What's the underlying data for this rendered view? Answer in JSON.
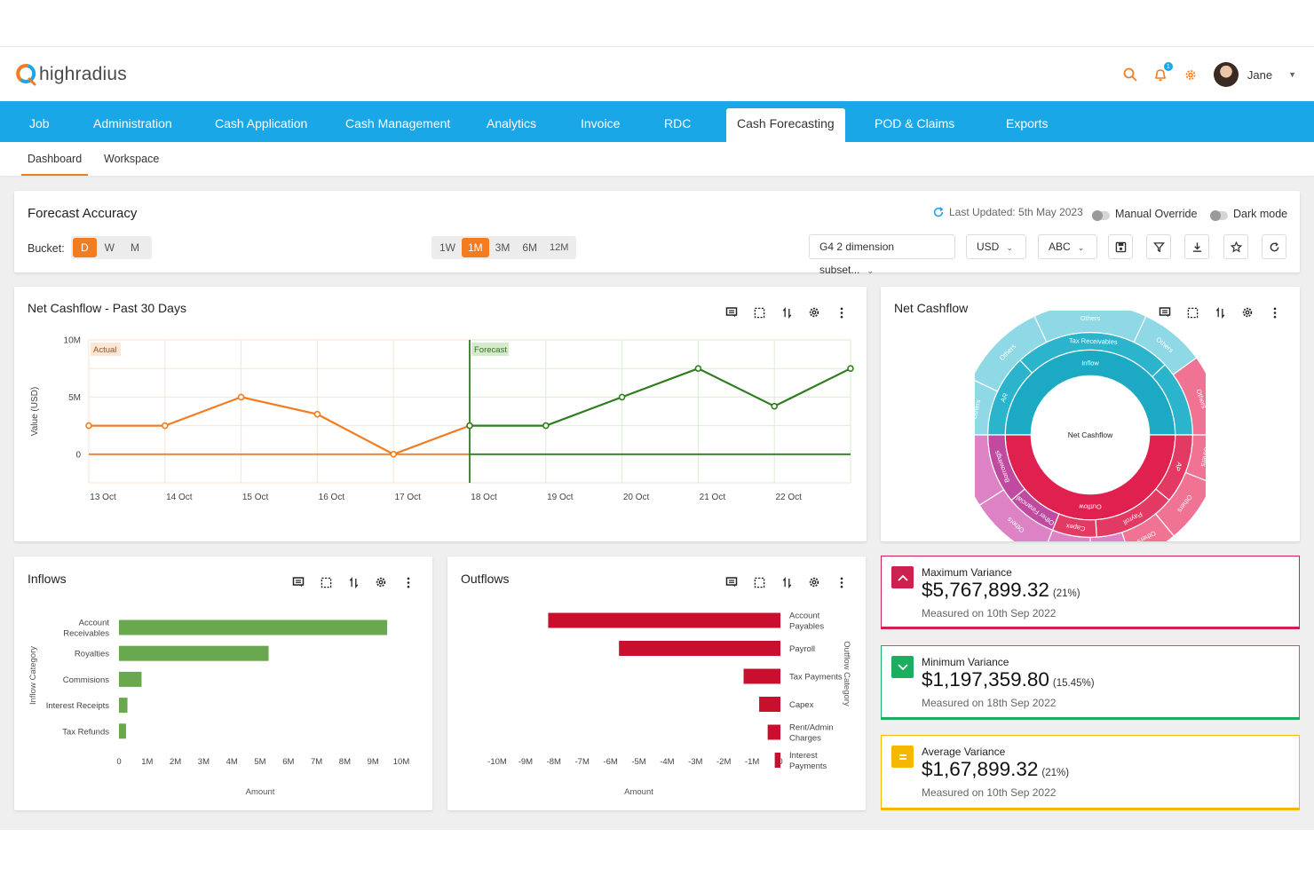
{
  "header": {
    "logo_text": "highradius",
    "user_name": "Jane",
    "notification_count": "1",
    "accent": "#f47c20"
  },
  "nav": {
    "items": [
      "Job",
      "Administration",
      "Cash Application",
      "Cash Management",
      "Analytics",
      "Invoice",
      "RDC",
      "Cash Forecasting",
      "POD & Claims",
      "Exports"
    ],
    "active": "Cash Forecasting",
    "color": "#1aa7e8"
  },
  "subnav": {
    "items": [
      "Dashboard",
      "Workspace"
    ],
    "active": "Dashboard"
  },
  "forecast": {
    "title": "Forecast Accuracy",
    "last_updated": "Last Updated: 5th May 2023",
    "manual_override": "Manual Override",
    "dark_mode": "Dark mode",
    "bucket_label": "Bucket:",
    "buckets": [
      "D",
      "W",
      "M"
    ],
    "bucket_active": "D",
    "ranges": [
      "1W",
      "1M",
      "3M",
      "6M",
      "12M"
    ],
    "range_active": "1M",
    "subset": "G4 2 dimension subset...",
    "currency": "USD",
    "company": "ABC"
  },
  "net_cashflow_line": {
    "title": "Net Cashflow - Past 30 Days",
    "actual_label": "Actual",
    "forecast_label": "Forecast"
  },
  "net_cashflow_sunburst": {
    "title": "Net Cashflow",
    "center": "Net Cashflow",
    "inflow_color": "#1ba9c4",
    "outflow_color": "#e0204f"
  },
  "inflows": {
    "title": "Inflows"
  },
  "outflows": {
    "title": "Outflows"
  },
  "variances": [
    {
      "title": "Maximum Variance",
      "value": "$5,767,899.32",
      "pct": "(21%)",
      "measured": "Measured on 10th Sep 2022",
      "color": "#cc2250"
    },
    {
      "title": "Minimum Variance",
      "value": "$1,197,359.80",
      "pct": "(15.45%)",
      "measured": "Measured on 18th Sep 2022",
      "color": "#1aae5e"
    },
    {
      "title": "Average Variance",
      "value": "$1,67,899.32",
      "pct": "(21%)",
      "measured": "Measured on 10th Sep 2022",
      "color": "#f5b800"
    }
  ],
  "chart_data": [
    {
      "type": "line",
      "title": "Net Cashflow - Past 30 Days",
      "ylabel": "Value (USD)",
      "xlabel": "",
      "x": [
        "13 Oct",
        "14 Oct",
        "15 Oct",
        "16 Oct",
        "17 Oct",
        "18 Oct",
        "19 Oct",
        "20 Oct",
        "21 Oct",
        "22 Oct",
        ""
      ],
      "yticks": [
        "10M",
        "5M",
        "0"
      ],
      "ylim": [
        -2500000,
        10000000
      ],
      "series": [
        {
          "name": "Actual",
          "color": "#f47c20",
          "values": [
            2500000,
            2500000,
            5000000,
            3500000,
            0,
            2500000,
            null,
            null,
            null,
            null,
            null
          ]
        },
        {
          "name": "Forecast",
          "color": "#2e7d1e",
          "values": [
            null,
            null,
            null,
            null,
            null,
            2500000,
            2500000,
            5000000,
            7500000,
            4200000,
            7500000
          ]
        }
      ],
      "grid": true
    },
    {
      "type": "pie",
      "title": "Net Cashflow",
      "center_label": "Net Cashflow",
      "rings": [
        {
          "level": 1,
          "slices": [
            {
              "label": "Inflow",
              "value": 50
            },
            {
              "label": "Outflow",
              "value": 50
            }
          ]
        },
        {
          "level": 2,
          "slices": [
            {
              "label": "AR",
              "value": 13
            },
            {
              "label": "Tax Receivables",
              "value": 25
            },
            {
              "label": "",
              "value": 12
            },
            {
              "label": "AP",
              "value": 11
            },
            {
              "label": "Payroll",
              "value": 13
            },
            {
              "label": "Capex",
              "value": 7
            },
            {
              "label": "Other Financial",
              "value": 8
            },
            {
              "label": "Borrowings",
              "value": 11
            }
          ]
        },
        {
          "level": 3,
          "slices": [
            {
              "label": "Others",
              "value": 7
            },
            {
              "label": "Others",
              "value": 11
            },
            {
              "label": "Others",
              "value": 14
            },
            {
              "label": "Others",
              "value": 8
            },
            {
              "label": "Others",
              "value": 10
            },
            {
              "label": "Others",
              "value": 6
            },
            {
              "label": "Others",
              "value": 8
            },
            {
              "label": "Others",
              "value": 6
            },
            {
              "label": "Other...",
              "value": 5
            },
            {
              "label": "Others",
              "value": 6
            },
            {
              "label": "Others",
              "value": 10
            },
            {
              "label": "",
              "value": 9
            }
          ]
        }
      ]
    },
    {
      "type": "bar",
      "title": "Inflows",
      "orientation": "horizontal",
      "categories": [
        "Account Receivables",
        "Royalties",
        "Commisions",
        "Interest Receipts",
        "Tax Refunds"
      ],
      "values": [
        9500000,
        5300000,
        800000,
        300000,
        250000
      ],
      "xlabel": "Amount",
      "ylabel": "Inflow Category",
      "xlim": [
        0,
        10000000
      ],
      "xticks": [
        "0",
        "1M",
        "2M",
        "3M",
        "4M",
        "5M",
        "6M",
        "7M",
        "8M",
        "9M",
        "10M"
      ],
      "color": "#6aa84f"
    },
    {
      "type": "bar",
      "title": "Outflows",
      "orientation": "horizontal",
      "categories": [
        "Account Payables",
        "Payroll",
        "Tax Payments",
        "Capex",
        "Rent/Admin Charges",
        "Interest Payments"
      ],
      "values": [
        -8200000,
        -5700000,
        -1300000,
        -750000,
        -450000,
        -200000
      ],
      "xlabel": "Amount",
      "ylabel": "Outflow Category",
      "xlim": [
        -10000000,
        0
      ],
      "xticks": [
        "-10M",
        "-9M",
        "-8M",
        "-7M",
        "-6M",
        "-5M",
        "-4M",
        "-3M",
        "-2M",
        "-1M",
        "0"
      ],
      "color": "#c8102e"
    }
  ]
}
